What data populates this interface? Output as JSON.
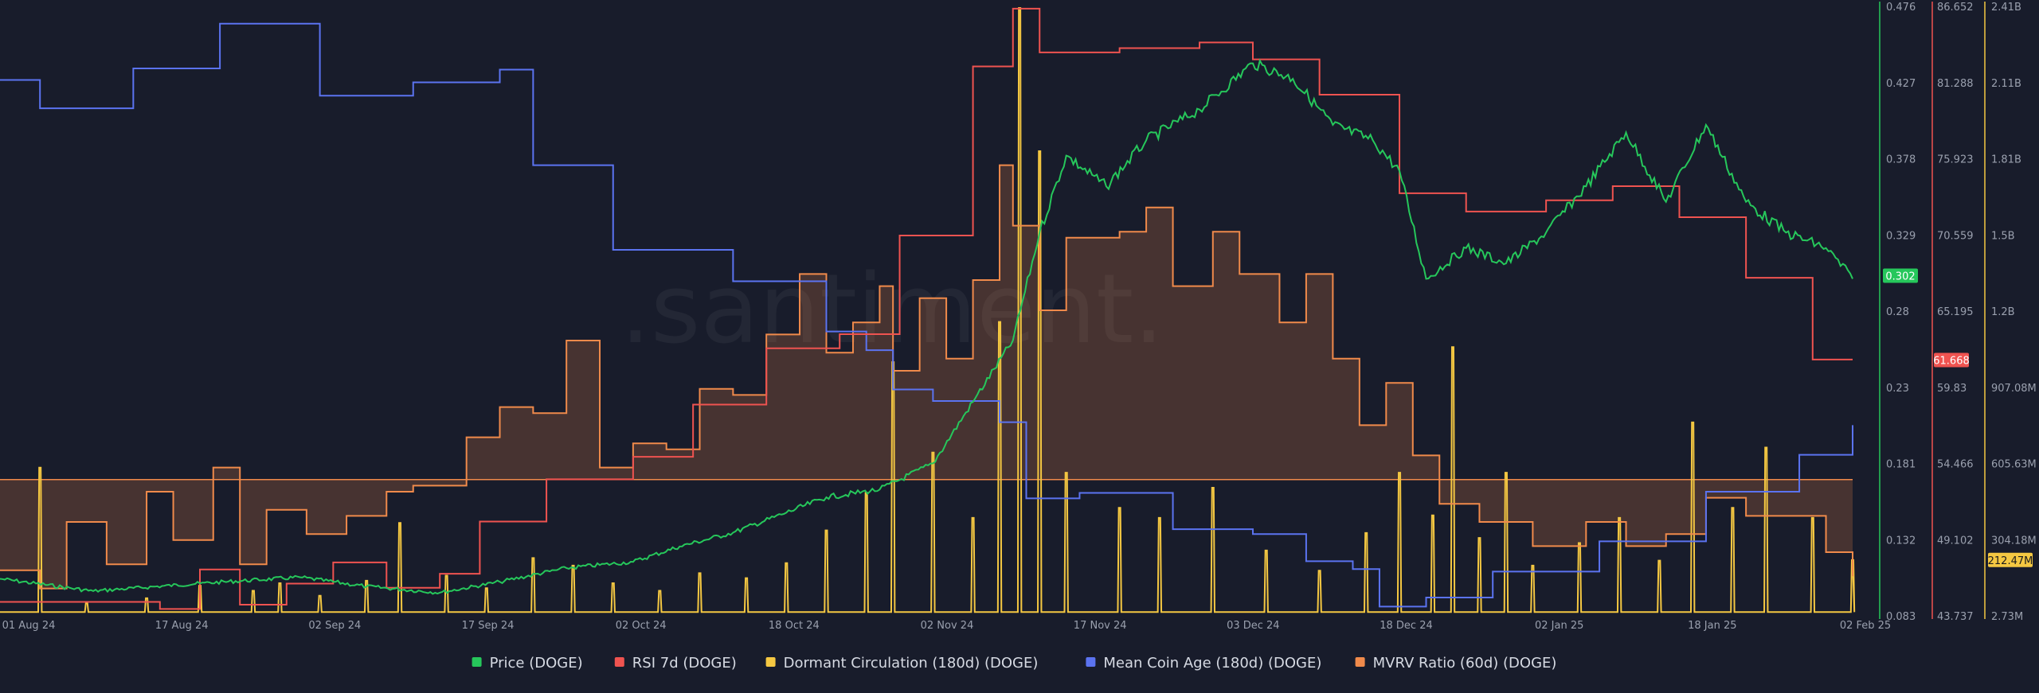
{
  "chart_data": {
    "type": "line",
    "watermark": ".santiment.",
    "x_ticks": [
      "01 Aug 24",
      "17 Aug 24",
      "02 Sep 24",
      "17 Sep 24",
      "02 Oct 24",
      "18 Oct 24",
      "02 Nov 24",
      "17 Nov 24",
      "03 Dec 24",
      "18 Dec 24",
      "02 Jan 25",
      "18 Jan 25",
      "02 Feb 25"
    ],
    "axes": {
      "price": {
        "ticks": [
          "0.476",
          "0.427",
          "0.378",
          "0.329",
          "0.28",
          "0.23",
          "0.181",
          "0.132",
          "0.083"
        ],
        "range": [
          0.083,
          0.476
        ],
        "color": "#26c75b",
        "last_label": "0.302",
        "last_value": 0.302
      },
      "rsi": {
        "ticks": [
          "86.652",
          "81.288",
          "75.923",
          "70.559",
          "65.195",
          "59.83",
          "54.466",
          "49.102",
          "43.737"
        ],
        "range": [
          43.737,
          86.652
        ],
        "color": "#ef5350",
        "last_label": "61.668",
        "last_value": 61.668
      },
      "dormant": {
        "ticks": [
          "2.41B",
          "2.11B",
          "1.81B",
          "1.5B",
          "1.2B",
          "907.08M",
          "605.63M",
          "304.18M",
          "2.73M"
        ],
        "range": [
          2.73,
          2410
        ],
        "unit": "M",
        "color": "#f5c842",
        "last_label": "212.47M",
        "last_value": 212.47
      }
    },
    "series": [
      {
        "key": "price",
        "name": "Price (DOGE)",
        "color": "#26c75b",
        "axis": "price",
        "points": [
          [
            0,
            0.105
          ],
          [
            14,
            0.097
          ],
          [
            30,
            0.102
          ],
          [
            45,
            0.106
          ],
          [
            55,
            0.1
          ],
          [
            66,
            0.096
          ],
          [
            75,
            0.103
          ],
          [
            85,
            0.112
          ],
          [
            95,
            0.116
          ],
          [
            102,
            0.126
          ],
          [
            110,
            0.135
          ],
          [
            118,
            0.148
          ],
          [
            124,
            0.158
          ],
          [
            132,
            0.163
          ],
          [
            140,
            0.18
          ],
          [
            146,
            0.22
          ],
          [
            152,
            0.26
          ],
          [
            156,
            0.33
          ],
          [
            160,
            0.38
          ],
          [
            166,
            0.36
          ],
          [
            172,
            0.39
          ],
          [
            180,
            0.41
          ],
          [
            188,
            0.44
          ],
          [
            194,
            0.43
          ],
          [
            200,
            0.4
          ],
          [
            206,
            0.39
          ],
          [
            210,
            0.37
          ],
          [
            214,
            0.3
          ],
          [
            220,
            0.32
          ],
          [
            226,
            0.31
          ],
          [
            232,
            0.33
          ],
          [
            238,
            0.36
          ],
          [
            244,
            0.395
          ],
          [
            250,
            0.35
          ],
          [
            256,
            0.4
          ],
          [
            262,
            0.35
          ],
          [
            268,
            0.33
          ],
          [
            274,
            0.32
          ],
          [
            278,
            0.3
          ]
        ]
      },
      {
        "key": "rsi",
        "name": "RSI 7d (DOGE)",
        "color": "#ef5350",
        "axis": "rsi",
        "points": [
          [
            0,
            44.5
          ],
          [
            24,
            44.0
          ],
          [
            30,
            46.8
          ],
          [
            36,
            44.3
          ],
          [
            43,
            45.8
          ],
          [
            50,
            47.3
          ],
          [
            58,
            45.5
          ],
          [
            66,
            46.5
          ],
          [
            72,
            50.2
          ],
          [
            82,
            53.2
          ],
          [
            95,
            54.8
          ],
          [
            104,
            58.5
          ],
          [
            115,
            62.5
          ],
          [
            126,
            63.5
          ],
          [
            135,
            70.5
          ],
          [
            146,
            82.5
          ],
          [
            152,
            86.6
          ],
          [
            156,
            83.5
          ],
          [
            168,
            83.8
          ],
          [
            180,
            84.2
          ],
          [
            188,
            83.0
          ],
          [
            198,
            80.5
          ],
          [
            210,
            73.5
          ],
          [
            220,
            72.2
          ],
          [
            232,
            73.0
          ],
          [
            242,
            74.0
          ],
          [
            252,
            71.8
          ],
          [
            262,
            67.5
          ],
          [
            272,
            61.7
          ],
          [
            278,
            61.7
          ]
        ]
      },
      {
        "key": "dormant",
        "name": "Dormant Circulation (180d) (DOGE)",
        "color": "#f5c842",
        "axis": "dormant",
        "base": 5,
        "spikes": [
          [
            6,
            580
          ],
          [
            13,
            40
          ],
          [
            22,
            60
          ],
          [
            30,
            110
          ],
          [
            38,
            90
          ],
          [
            42,
            120
          ],
          [
            48,
            70
          ],
          [
            55,
            130
          ],
          [
            60,
            360
          ],
          [
            67,
            150
          ],
          [
            73,
            100
          ],
          [
            80,
            220
          ],
          [
            86,
            190
          ],
          [
            92,
            120
          ],
          [
            99,
            90
          ],
          [
            105,
            160
          ],
          [
            112,
            140
          ],
          [
            118,
            200
          ],
          [
            124,
            330
          ],
          [
            130,
            480
          ],
          [
            134,
            1000
          ],
          [
            140,
            640
          ],
          [
            146,
            380
          ],
          [
            150,
            1160
          ],
          [
            153,
            2410
          ],
          [
            156,
            1840
          ],
          [
            160,
            560
          ],
          [
            168,
            420
          ],
          [
            174,
            380
          ],
          [
            182,
            500
          ],
          [
            190,
            250
          ],
          [
            198,
            170
          ],
          [
            205,
            320
          ],
          [
            210,
            560
          ],
          [
            215,
            390
          ],
          [
            218,
            1060
          ],
          [
            222,
            300
          ],
          [
            226,
            560
          ],
          [
            230,
            190
          ],
          [
            237,
            280
          ],
          [
            243,
            380
          ],
          [
            249,
            210
          ],
          [
            254,
            760
          ],
          [
            260,
            420
          ],
          [
            265,
            660
          ],
          [
            272,
            380
          ],
          [
            278,
            212
          ]
        ]
      },
      {
        "key": "mean_coin_age",
        "name": "Mean Coin Age (180d) (DOGE)",
        "color": "#5b73f0",
        "axis": "none",
        "points": [
          [
            0,
            0.881
          ],
          [
            6,
            0.834
          ],
          [
            20,
            0.9
          ],
          [
            33,
            0.974
          ],
          [
            48,
            0.855
          ],
          [
            62,
            0.877
          ],
          [
            75,
            0.898
          ],
          [
            80,
            0.74
          ],
          [
            92,
            0.6
          ],
          [
            110,
            0.548
          ],
          [
            124,
            0.465
          ],
          [
            130,
            0.434
          ],
          [
            134,
            0.369
          ],
          [
            140,
            0.35
          ],
          [
            150,
            0.315
          ],
          [
            154,
            0.189
          ],
          [
            162,
            0.198
          ],
          [
            172,
            0.198
          ],
          [
            176,
            0.138
          ],
          [
            188,
            0.13
          ],
          [
            196,
            0.085
          ],
          [
            203,
            0.072
          ],
          [
            207,
            0.01
          ],
          [
            214,
            0.025
          ],
          [
            224,
            0.068
          ],
          [
            240,
            0.118
          ],
          [
            256,
            0.2
          ],
          [
            270,
            0.261
          ],
          [
            278,
            0.31
          ]
        ]
      },
      {
        "key": "mvrv",
        "name": "MVRV Ratio (60d) (DOGE)",
        "color": "#f08a4b",
        "axis": "none",
        "fill_baseline": 0.22,
        "points": [
          [
            0,
            0.07
          ],
          [
            6,
            0.04
          ],
          [
            10,
            0.15
          ],
          [
            16,
            0.08
          ],
          [
            22,
            0.2
          ],
          [
            26,
            0.12
          ],
          [
            32,
            0.24
          ],
          [
            36,
            0.08
          ],
          [
            40,
            0.17
          ],
          [
            46,
            0.13
          ],
          [
            52,
            0.16
          ],
          [
            58,
            0.2
          ],
          [
            62,
            0.21
          ],
          [
            70,
            0.29
          ],
          [
            75,
            0.34
          ],
          [
            80,
            0.33
          ],
          [
            85,
            0.45
          ],
          [
            90,
            0.24
          ],
          [
            95,
            0.28
          ],
          [
            100,
            0.27
          ],
          [
            105,
            0.37
          ],
          [
            110,
            0.36
          ],
          [
            115,
            0.46
          ],
          [
            120,
            0.56
          ],
          [
            124,
            0.43
          ],
          [
            128,
            0.48
          ],
          [
            132,
            0.54
          ],
          [
            134,
            0.4
          ],
          [
            138,
            0.52
          ],
          [
            142,
            0.42
          ],
          [
            146,
            0.55
          ],
          [
            150,
            0.74
          ],
          [
            152,
            0.64
          ],
          [
            156,
            0.5
          ],
          [
            160,
            0.62
          ],
          [
            168,
            0.63
          ],
          [
            172,
            0.67
          ],
          [
            176,
            0.54
          ],
          [
            182,
            0.63
          ],
          [
            186,
            0.56
          ],
          [
            192,
            0.48
          ],
          [
            196,
            0.56
          ],
          [
            200,
            0.42
          ],
          [
            204,
            0.31
          ],
          [
            208,
            0.38
          ],
          [
            212,
            0.26
          ],
          [
            216,
            0.18
          ],
          [
            222,
            0.15
          ],
          [
            230,
            0.11
          ],
          [
            238,
            0.15
          ],
          [
            244,
            0.11
          ],
          [
            250,
            0.13
          ],
          [
            256,
            0.19
          ],
          [
            262,
            0.16
          ],
          [
            268,
            0.16
          ],
          [
            274,
            0.1
          ],
          [
            278,
            0.06
          ]
        ]
      }
    ],
    "legend": {
      "placement": "bottom",
      "items": [
        {
          "name": "Price (DOGE)",
          "color": "#26c75b"
        },
        {
          "name": "RSI 7d (DOGE)",
          "color": "#ef5350"
        },
        {
          "name": "Dormant Circulation (180d) (DOGE)",
          "color": "#f5c842"
        },
        {
          "name": "Mean Coin Age (180d) (DOGE)",
          "color": "#5b73f0"
        },
        {
          "name": "MVRV Ratio (60d) (DOGE)",
          "color": "#f08a4b"
        }
      ]
    }
  }
}
